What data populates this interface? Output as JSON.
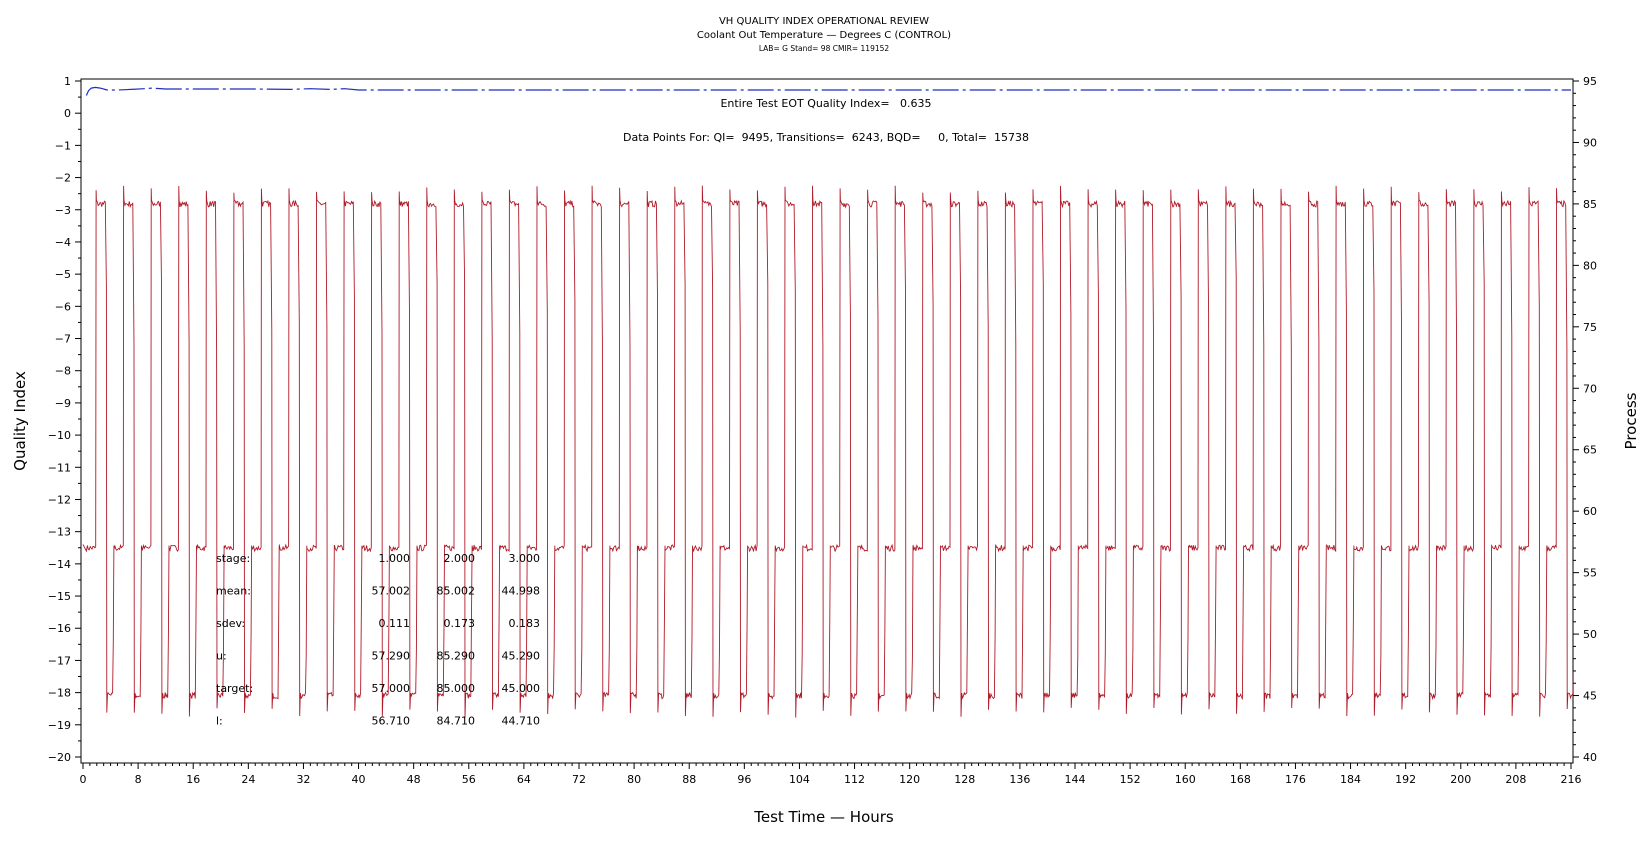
{
  "chart_data": {
    "type": "line",
    "title": "VH QUALITY INDEX OPERATIONAL REVIEW",
    "subtitle": "Coolant Out Temperature — Degrees C (CONTROL)",
    "subtitle2": "LAB= G Stand= 98 CMIR= 119152",
    "xlabel": "Test Time — Hours",
    "ylabel_left": "Quality Index",
    "ylabel_right": "Process",
    "xlim": [
      0,
      216
    ],
    "ylim_left": [
      -20,
      1
    ],
    "ylim_right": [
      40,
      95
    ],
    "x_ticks": [
      "0",
      "8",
      "16",
      "24",
      "32",
      "40",
      "48",
      "56",
      "64",
      "72",
      "80",
      "88",
      "96",
      "104",
      "112",
      "120",
      "128",
      "136",
      "144",
      "152",
      "160",
      "168",
      "176",
      "184",
      "192",
      "200",
      "208",
      "216"
    ],
    "y_left_ticks": [
      "1",
      "0",
      "−1",
      "−2",
      "−3",
      "−4",
      "−5",
      "−6",
      "−7",
      "−8",
      "−9",
      "−10",
      "−11",
      "−12",
      "−13",
      "−14",
      "−15",
      "−16",
      "−17",
      "−18",
      "−19",
      "−20"
    ],
    "y_right_ticks": [
      "95",
      "90",
      "85",
      "80",
      "75",
      "70",
      "65",
      "60",
      "55",
      "50",
      "45",
      "40"
    ],
    "annotations": {
      "quality_index": "Entire Test EOT Quality Index=   0.635",
      "data_points": "Data Points For: QI=  9495, Transitions=  6243, BQD=     0, Total=  15738"
    },
    "stats_table": {
      "rows": [
        {
          "label": "stage:",
          "values": [
            "1.000",
            "2.000",
            "3.000"
          ]
        },
        {
          "label": "mean:",
          "values": [
            "57.002",
            "85.002",
            "44.998"
          ]
        },
        {
          "label": "sdev:",
          "values": [
            "0.111",
            "0.173",
            "0.183"
          ]
        },
        {
          "label": "u:",
          "values": [
            "57.290",
            "85.290",
            "45.290"
          ]
        },
        {
          "label": "target:",
          "values": [
            "57.000",
            "85.000",
            "45.000"
          ]
        },
        {
          "label": "l:",
          "values": [
            "56.710",
            "84.710",
            "44.710"
          ]
        }
      ]
    },
    "series": [
      {
        "axis": "left",
        "color": "#1f2fc0",
        "style": "dash-dot",
        "points": [
          [
            0.5,
            0.55
          ],
          [
            0.8,
            0.7
          ],
          [
            1.2,
            0.78
          ],
          [
            1.8,
            0.8
          ],
          [
            2.5,
            0.78
          ],
          [
            3.5,
            0.72
          ],
          [
            5,
            0.72
          ],
          [
            7,
            0.74
          ],
          [
            9,
            0.76
          ],
          [
            10,
            0.78
          ],
          [
            12,
            0.75
          ],
          [
            16,
            0.75
          ],
          [
            20,
            0.75
          ],
          [
            25,
            0.75
          ],
          [
            30,
            0.74
          ],
          [
            33,
            0.76
          ],
          [
            36,
            0.74
          ],
          [
            38,
            0.76
          ],
          [
            40,
            0.72
          ],
          [
            216,
            0.72
          ]
        ]
      },
      {
        "axis": "right",
        "color": "#b01a28",
        "style": "solid",
        "cycle": {
          "period_hours": 4,
          "cycles": 54,
          "first_cycle_start": 0.5,
          "stage_levels": [
            57.0,
            85.0,
            45.0
          ],
          "stage1_hours": 1.4,
          "stage2_hours": 1.4,
          "stage3_hours": 1.2,
          "overshoot_high": 86.5,
          "overshoot_low": 43.2,
          "noise": 0.25
        }
      }
    ]
  }
}
